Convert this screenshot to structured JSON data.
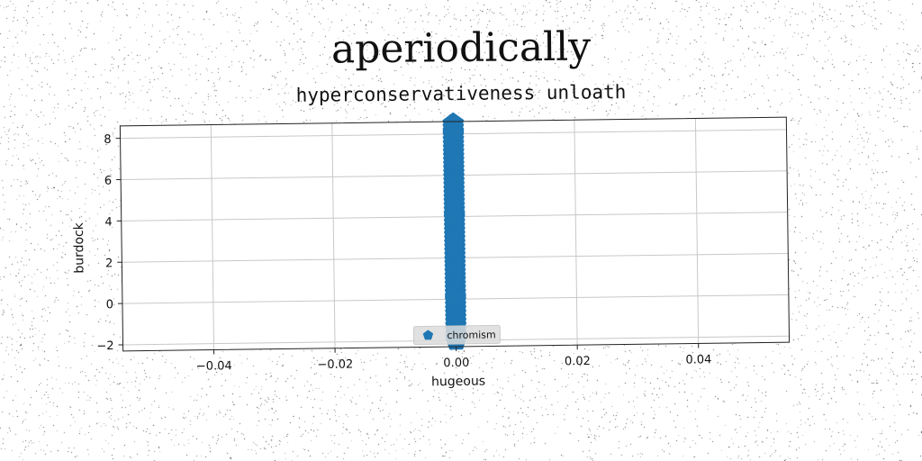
{
  "page": {
    "title": "aperiodically"
  },
  "chart_data": {
    "type": "scatter",
    "title": "hyperconservativeness unloath",
    "xlabel": "hugeous",
    "ylabel": "burdock",
    "xlim": [
      -0.055,
      0.055
    ],
    "ylim": [
      -2.3,
      8.6
    ],
    "xticks": [
      -0.04,
      -0.02,
      0.0,
      0.02,
      0.04
    ],
    "xtick_labels": [
      "−0.04",
      "−0.02",
      "0.00",
      "0.02",
      "0.04"
    ],
    "yticks": [
      -2,
      0,
      2,
      4,
      6,
      8
    ],
    "ytick_labels": [
      "−2",
      "0",
      "2",
      "4",
      "6",
      "8"
    ],
    "grid": true,
    "legend_position": "bottom-center",
    "series": [
      {
        "name": "chromism",
        "marker": "pentagon",
        "color": "#1f77b4",
        "x": [
          0,
          0,
          0,
          0,
          0,
          0,
          0,
          0,
          0,
          0,
          0,
          0,
          0,
          0,
          0,
          0,
          0,
          0,
          0,
          0,
          0,
          0,
          0,
          0,
          0,
          0,
          0,
          0,
          0,
          0,
          0,
          0,
          0,
          0,
          0,
          0,
          0,
          0,
          0,
          0,
          0,
          0,
          0,
          0,
          0,
          0,
          0,
          0,
          0,
          0,
          0,
          0,
          0,
          0,
          0,
          0,
          0
        ],
        "y": [
          -1.9,
          -1.7,
          -1.5,
          -1.3,
          -1.1,
          -0.9,
          -0.7,
          -0.5,
          -0.3,
          -0.1,
          0.1,
          0.3,
          0.5,
          0.7,
          0.9,
          1.1,
          1.3,
          1.5,
          1.7,
          1.9,
          2.1,
          2.3,
          2.5,
          2.7,
          2.9,
          3.1,
          3.3,
          3.5,
          3.7,
          3.9,
          4.1,
          4.3,
          4.5,
          4.7,
          4.9,
          5.1,
          5.3,
          5.5,
          5.7,
          5.9,
          6.1,
          6.3,
          6.5,
          6.7,
          6.9,
          7.1,
          7.3,
          7.5,
          7.7,
          7.9,
          8.1,
          8.3,
          8.5,
          -2.0,
          0.0,
          4.0,
          8.0
        ]
      }
    ]
  }
}
